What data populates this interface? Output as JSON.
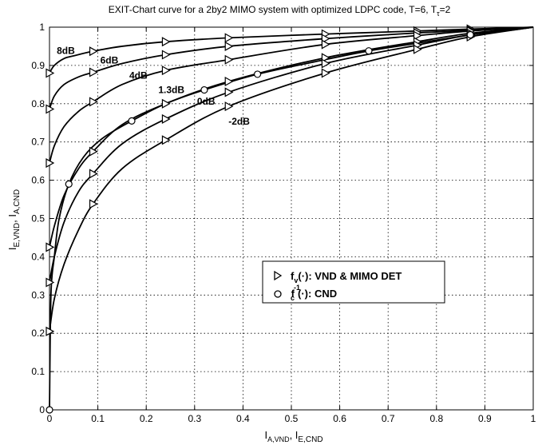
{
  "chart_data": {
    "type": "line",
    "title": "EXIT-Chart curve for a 2by2 MIMO system with optimized LDPC code,  T=6, T",
    "title_sub": "τ",
    "title_tail": "=2",
    "xlabel_main": "I",
    "xlabel_sub1": "A,VND",
    "xlabel_sep": ", I",
    "xlabel_sub2": "E,CND",
    "ylabel_main": "I",
    "ylabel_sub1": "E,VND",
    "ylabel_sep": ", I",
    "ylabel_sub2": "A,CND",
    "xlim": [
      0,
      1
    ],
    "ylim": [
      0,
      1
    ],
    "grid": true,
    "x_ticks": [
      "0",
      "0.1",
      "0.2",
      "0.3",
      "0.4",
      "0.5",
      "0.6",
      "0.7",
      "0.8",
      "0.9",
      "1"
    ],
    "y_ticks": [
      "0",
      "0.1",
      "0.2",
      "0.3",
      "0.4",
      "0.5",
      "0.6",
      "0.7",
      "0.8",
      "0.9",
      "1"
    ],
    "series": [
      {
        "name": "8dB",
        "marker": "triangle",
        "x": [
          0,
          0.01,
          0.03,
          0.05,
          0.09,
          0.15,
          0.24,
          0.37,
          0.57,
          0.76,
          0.87,
          1.0
        ],
        "y": [
          0.88,
          0.9,
          0.918,
          0.925,
          0.937,
          0.95,
          0.962,
          0.972,
          0.982,
          0.99,
          0.995,
          1.0
        ],
        "markers_x": [
          0,
          0.09,
          0.24,
          0.37,
          0.57,
          0.76,
          0.87
        ],
        "markers_y": [
          0.88,
          0.937,
          0.962,
          0.972,
          0.982,
          0.99,
          0.995
        ]
      },
      {
        "name": "6dB",
        "marker": "triangle",
        "x": [
          0,
          0.01,
          0.03,
          0.06,
          0.09,
          0.15,
          0.24,
          0.37,
          0.57,
          0.76,
          0.87,
          1.0
        ],
        "y": [
          0.786,
          0.82,
          0.85,
          0.87,
          0.882,
          0.905,
          0.928,
          0.95,
          0.97,
          0.985,
          0.992,
          1.0
        ],
        "markers_x": [
          0,
          0.09,
          0.24,
          0.37,
          0.57,
          0.76,
          0.87
        ],
        "markers_y": [
          0.786,
          0.882,
          0.928,
          0.95,
          0.97,
          0.985,
          0.992
        ]
      },
      {
        "name": "4dB",
        "marker": "triangle",
        "x": [
          0,
          0.01,
          0.03,
          0.06,
          0.09,
          0.15,
          0.24,
          0.37,
          0.57,
          0.76,
          0.87,
          1.0
        ],
        "y": [
          0.645,
          0.69,
          0.74,
          0.78,
          0.805,
          0.85,
          0.887,
          0.915,
          0.955,
          0.978,
          0.99,
          1.0
        ],
        "markers_x": [
          0,
          0.09,
          0.24,
          0.37,
          0.57,
          0.76,
          0.87
        ],
        "markers_y": [
          0.645,
          0.805,
          0.887,
          0.915,
          0.955,
          0.978,
          0.99
        ]
      },
      {
        "name": "1.3dB",
        "marker": "triangle",
        "x": [
          0,
          0.01,
          0.03,
          0.06,
          0.09,
          0.15,
          0.24,
          0.37,
          0.57,
          0.76,
          0.87,
          1.0
        ],
        "y": [
          0.425,
          0.48,
          0.56,
          0.63,
          0.675,
          0.745,
          0.8,
          0.858,
          0.92,
          0.962,
          0.984,
          1.0
        ],
        "markers_x": [
          0,
          0.09,
          0.24,
          0.37,
          0.57,
          0.76,
          0.87
        ],
        "markers_y": [
          0.425,
          0.675,
          0.8,
          0.858,
          0.92,
          0.962,
          0.984
        ]
      },
      {
        "name": "0dB",
        "marker": "triangle",
        "x": [
          0,
          0.01,
          0.03,
          0.06,
          0.09,
          0.15,
          0.24,
          0.37,
          0.57,
          0.76,
          0.87,
          1.0
        ],
        "y": [
          0.333,
          0.4,
          0.49,
          0.57,
          0.617,
          0.695,
          0.76,
          0.83,
          0.905,
          0.953,
          0.98,
          1.0
        ],
        "markers_x": [
          0,
          0.09,
          0.24,
          0.37,
          0.57,
          0.76,
          0.87
        ],
        "markers_y": [
          0.333,
          0.617,
          0.76,
          0.83,
          0.905,
          0.953,
          0.98
        ]
      },
      {
        "name": "-2dB",
        "marker": "triangle",
        "x": [
          0,
          0.01,
          0.03,
          0.06,
          0.09,
          0.15,
          0.24,
          0.37,
          0.57,
          0.76,
          0.87,
          1.0
        ],
        "y": [
          0.205,
          0.29,
          0.38,
          0.47,
          0.538,
          0.63,
          0.705,
          0.793,
          0.88,
          0.942,
          0.975,
          1.0
        ],
        "markers_x": [
          0,
          0.09,
          0.24,
          0.37,
          0.57,
          0.76,
          0.87
        ],
        "markers_y": [
          0.205,
          0.538,
          0.705,
          0.793,
          0.88,
          0.942,
          0.975
        ]
      },
      {
        "name": "CND",
        "marker": "circle",
        "x": [
          0,
          0.003,
          0.01,
          0.02,
          0.04,
          0.07,
          0.11,
          0.17,
          0.24,
          0.32,
          0.43,
          0.55,
          0.66,
          0.77,
          0.87,
          0.94,
          1.0
        ],
        "y": [
          0,
          0.3,
          0.4,
          0.5,
          0.59,
          0.66,
          0.71,
          0.755,
          0.8,
          0.836,
          0.877,
          0.91,
          0.938,
          0.96,
          0.98,
          0.99,
          1.0
        ],
        "markers_x": [
          0,
          0.04,
          0.17,
          0.32,
          0.43,
          0.66,
          0.87
        ],
        "markers_y": [
          0,
          0.59,
          0.755,
          0.836,
          0.877,
          0.938,
          0.98
        ]
      }
    ],
    "curve_labels": [
      {
        "text": "8dB",
        "x": 0.015,
        "y": 0.93
      },
      {
        "text": "6dB",
        "x": 0.105,
        "y": 0.905
      },
      {
        "text": "4dB",
        "x": 0.165,
        "y": 0.865
      },
      {
        "text": "1.3dB",
        "x": 0.225,
        "y": 0.828
      },
      {
        "text": "0dB",
        "x": 0.305,
        "y": 0.797
      },
      {
        "text": "-2dB",
        "x": 0.37,
        "y": 0.745
      }
    ],
    "legend": {
      "placement": "center-right",
      "entries": [
        {
          "marker": "triangle",
          "func": "f",
          "sub": "v",
          "text": "(·):  VND & MIMO DET"
        },
        {
          "marker": "circle",
          "func": "f",
          "sub": "c",
          "sup": "-1",
          "text": "(·):  CND"
        }
      ]
    }
  }
}
